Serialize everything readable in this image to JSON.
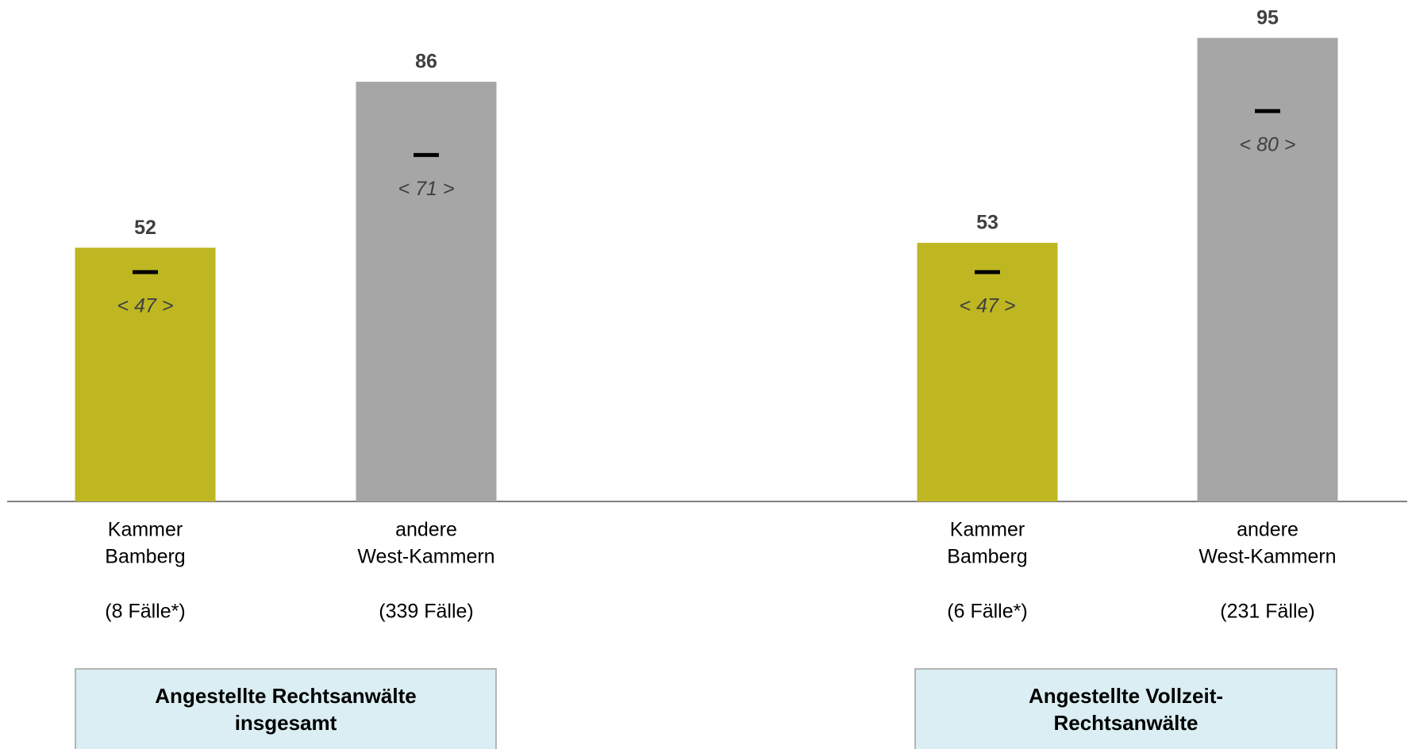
{
  "chart_data": {
    "type": "bar",
    "categories": [
      [
        "Kammer",
        "Bamberg"
      ],
      [
        "andere",
        "West-Kammern"
      ],
      [
        "Kammer",
        "Bamberg"
      ],
      [
        "andere",
        "West-Kammern"
      ]
    ],
    "cases": [
      "(8 Fälle*)",
      "(339 Fälle)",
      "(6 Fälle*)",
      "(231 Fälle)"
    ],
    "values": [
      52,
      86,
      53,
      95
    ],
    "colors": [
      "#bfb722",
      "#a6a6a6",
      "#bfb722",
      "#a6a6a6"
    ],
    "medians": [
      47,
      71,
      47,
      80
    ],
    "median_labels": [
      "< 47 >",
      "< 71 >",
      "< 47 >",
      "< 80 >"
    ],
    "groups": [
      [
        "Angestellte Rechtsanwälte",
        "insgesamt"
      ],
      [
        "Angestellte Vollzeit-",
        "Rechtsanwälte"
      ]
    ]
  }
}
